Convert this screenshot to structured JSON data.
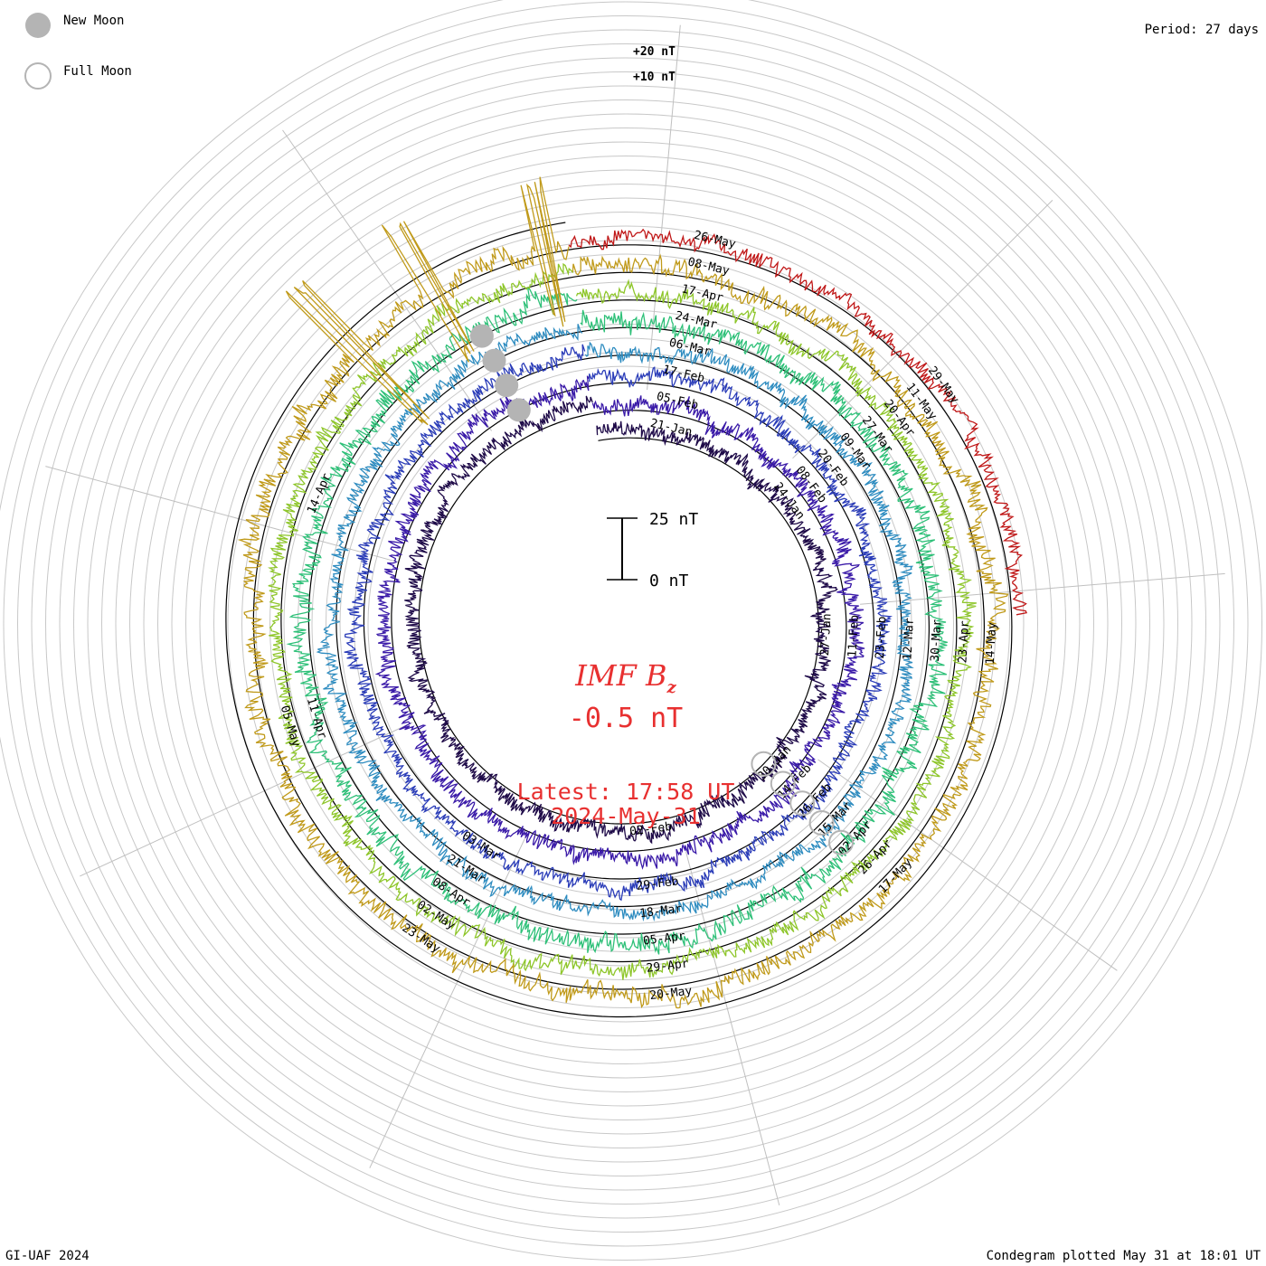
{
  "chart_data": {
    "type": "line",
    "subtype": "polar-condegram",
    "title": "IMF Bz",
    "title_main": "IMF B",
    "title_sub": "z",
    "current_value": "-0.5 nT",
    "latest_time": "Latest: 17:58 UT",
    "latest_date": "2024-May-31",
    "period": "Period: 27 days",
    "credit": "GI-UAF 2024",
    "plotted": "Condegram plotted May 31 at 18:01 UT",
    "legend": [
      {
        "label": "New Moon",
        "symbol": "filled-circle"
      },
      {
        "label": "Full Moon",
        "symbol": "open-circle"
      }
    ],
    "scale_bar": {
      "top_label": "25 nT",
      "bottom_label": "0 nT",
      "range_nT": [
        0,
        25
      ]
    },
    "outer_scale_labels": [
      "+20 nT",
      "+10 nT"
    ],
    "rotations": [
      {
        "color": "#1e0a48",
        "dates": [
          "21-Jan",
          "24-Jan",
          "27-Jan",
          "30-Jan",
          "02-Feb"
        ],
        "amplitude": 1.0,
        "spikes": []
      },
      {
        "color": "#3a1aa8",
        "dates": [
          "05-Feb",
          "08-Feb",
          "11-Feb",
          "14-Feb"
        ],
        "amplitude": 1.1,
        "spikes": []
      },
      {
        "color": "#2a3cb8",
        "dates": [
          "17-Feb",
          "20-Feb",
          "23-Feb",
          "26-Feb",
          "29-Feb",
          "03-Mar"
        ],
        "amplitude": 1.0,
        "spikes": []
      },
      {
        "color": "#2e8cc0",
        "dates": [
          "06-Mar",
          "09-Mar",
          "12-Mar",
          "15-Mar",
          "18-Mar",
          "21-Mar"
        ],
        "amplitude": 1.0,
        "spikes": []
      },
      {
        "color": "#2ec078",
        "dates": [
          "24-Mar",
          "27-Mar",
          "30-Mar",
          "02-Apr",
          "05-Apr",
          "08-Apr",
          "11-Apr",
          "14-Apr"
        ],
        "amplitude": 1.3,
        "spikes": []
      },
      {
        "color": "#8ec62a",
        "dates": [
          "17-Apr",
          "20-Apr",
          "23-Apr",
          "26-Apr",
          "29-Apr",
          "02-May",
          "05-May"
        ],
        "amplitude": 1.1,
        "spikes": []
      },
      {
        "color": "#c09a1a",
        "dates": [
          "08-May",
          "11-May",
          "14-May",
          "17-May",
          "20-May",
          "23-May"
        ],
        "amplitude": 1.3,
        "spikes": [
          [
            0.9,
            11
          ],
          [
            0.94,
            9
          ],
          [
            0.99,
            8
          ]
        ]
      },
      {
        "color": "#c01818",
        "dates": [
          "26-May",
          "29-May"
        ],
        "amplitude": 1.0,
        "spikes": []
      }
    ],
    "new_moons": [
      {
        "date": "09-Feb"
      },
      {
        "date": "10-Mar"
      },
      {
        "date": "08-Apr"
      },
      {
        "date": "08-May"
      }
    ],
    "full_moons": [
      {
        "date": "25-Jan"
      },
      {
        "date": "24-Feb"
      },
      {
        "date": "25-Mar"
      },
      {
        "date": "23-Apr"
      },
      {
        "date": "23-May"
      }
    ]
  }
}
